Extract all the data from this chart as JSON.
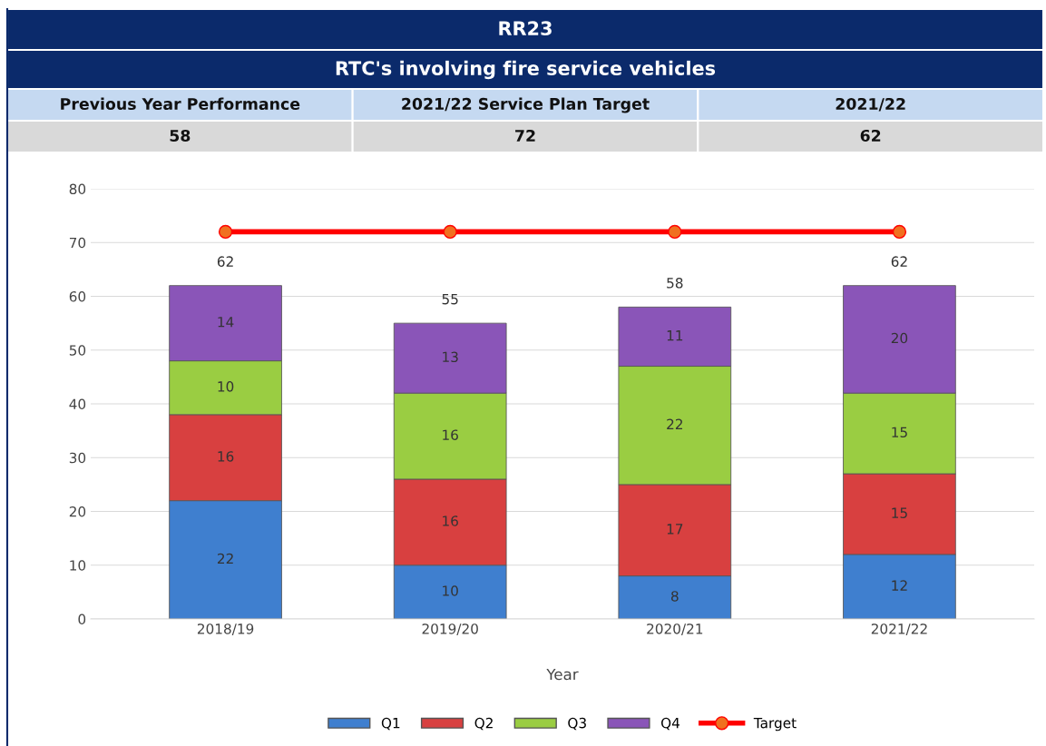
{
  "chart_data": {
    "type": "bar",
    "title": "RR23",
    "subtitle": "RTC's involving fire service vehicles",
    "annotations": [
      "Previous Year Performance",
      "2021/22 Service Plan Target",
      "2021/22",
      "58",
      "72",
      "62"
    ],
    "categories": [
      "2018/19",
      "2019/20",
      "2020/21",
      "2021/22"
    ],
    "xlabel": "Year",
    "stacked": true,
    "totals": [
      "62",
      "55",
      "58",
      "62"
    ],
    "series": [
      {
        "name": "Q1",
        "color": "#3f7fcf",
        "values": [
          22,
          10,
          8,
          12
        ],
        "value_labels": [
          "22",
          "10",
          "8",
          "12"
        ]
      },
      {
        "name": "Q2",
        "color": "#d84040",
        "values": [
          16,
          16,
          17,
          15
        ],
        "value_labels": [
          "16",
          "16",
          "17",
          "15"
        ]
      },
      {
        "name": "Q3",
        "color": "#9acd42",
        "values": [
          10,
          16,
          22,
          15
        ],
        "value_labels": [
          "10",
          "16",
          "22",
          "15"
        ]
      },
      {
        "name": "Q4",
        "color": "#8a55b8",
        "values": [
          14,
          13,
          11,
          20
        ],
        "value_labels": [
          "14",
          "13",
          "11",
          "20"
        ]
      },
      {
        "name": "Target",
        "type": "line",
        "color": "#ff0000",
        "marker": "circle",
        "values": [
          72,
          72,
          72,
          72
        ]
      }
    ],
    "ylim": [
      0,
      80
    ],
    "yticks": [
      0,
      10,
      20,
      30,
      40,
      50,
      60,
      70,
      80
    ],
    "grid": "y",
    "legend": "bottom"
  }
}
